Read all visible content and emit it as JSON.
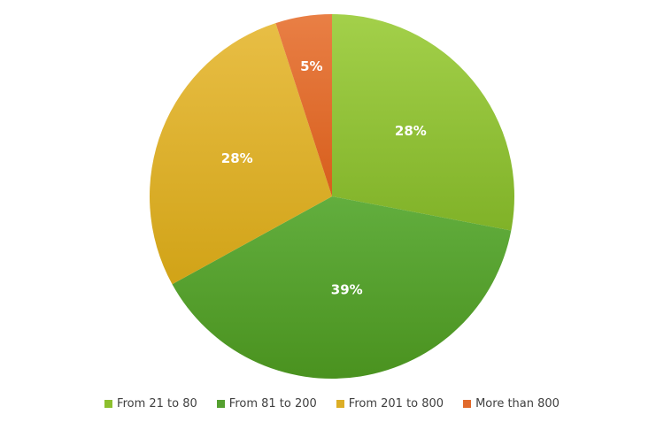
{
  "chart_data": {
    "type": "pie",
    "categories": [
      "From 21 to 80",
      "From 81 to 200",
      "From 201 to 800",
      "More than 800"
    ],
    "values": [
      28,
      39,
      28,
      5
    ],
    "data_labels": [
      "28%",
      "39%",
      "28%",
      "5%"
    ],
    "colors": [
      "#8cbf2e",
      "#55a030",
      "#dcae26",
      "#e16a2c"
    ],
    "title": "",
    "legend_position": "bottom",
    "start_angle": "12 o'clock",
    "direction": "clockwise"
  }
}
